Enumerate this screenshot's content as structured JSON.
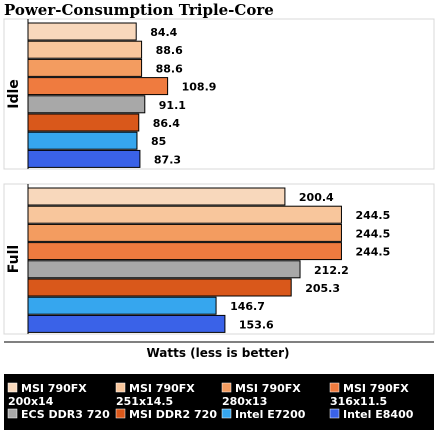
{
  "chart_data": {
    "type": "bar",
    "orientation": "horizontal",
    "title": "Power-Consumption Triple-Core",
    "xlabel": "Watts (less is better)",
    "categories": [
      "Idle",
      "Full"
    ],
    "series": [
      {
        "name": "MSI 790FX 200x14",
        "legend_lines": [
          "MSI 790FX",
          "200x14"
        ],
        "color": "#f8d8bc",
        "values": [
          84.4,
          200.4
        ]
      },
      {
        "name": "MSI 790FX 251x14.5",
        "legend_lines": [
          "MSI 790FX",
          "251x14.5"
        ],
        "color": "#f8c69c",
        "values": [
          88.6,
          244.5
        ]
      },
      {
        "name": "MSI 790FX 280x13",
        "legend_lines": [
          "MSI 790FX",
          "280x13"
        ],
        "color": "#f39c60",
        "values": [
          88.6,
          244.5
        ]
      },
      {
        "name": "MSI 790FX 316x11.5",
        "legend_lines": [
          "MSI 790FX",
          "316x11.5"
        ],
        "color": "#ef7b3f",
        "values": [
          108.9,
          244.5
        ]
      },
      {
        "name": "ECS DDR3 720",
        "legend_lines": [
          "ECS DDR3 720"
        ],
        "color": "#a8a8a8",
        "values": [
          91.1,
          212.2
        ]
      },
      {
        "name": "MSI DDR2 720",
        "legend_lines": [
          "MSI DDR2 720"
        ],
        "color": "#d9581b",
        "values": [
          86.4,
          205.3
        ]
      },
      {
        "name": "Intel E7200",
        "legend_lines": [
          "Intel E7200"
        ],
        "color": "#36a6ee",
        "values": [
          85,
          146.7
        ]
      },
      {
        "name": "Intel E8400",
        "legend_lines": [
          "Intel E8400"
        ],
        "color": "#3a62e8",
        "values": [
          87.3,
          153.6
        ]
      }
    ],
    "value_labels": [
      [
        "84.4",
        "88.6",
        "88.6",
        "108.9",
        "91.1",
        "86.4",
        "85",
        "87.3"
      ],
      [
        "200.4",
        "244.5",
        "244.5",
        "244.5",
        "212.2",
        "205.3",
        "146.7",
        "153.6"
      ]
    ],
    "legend_position": "bottom",
    "grid": false
  }
}
